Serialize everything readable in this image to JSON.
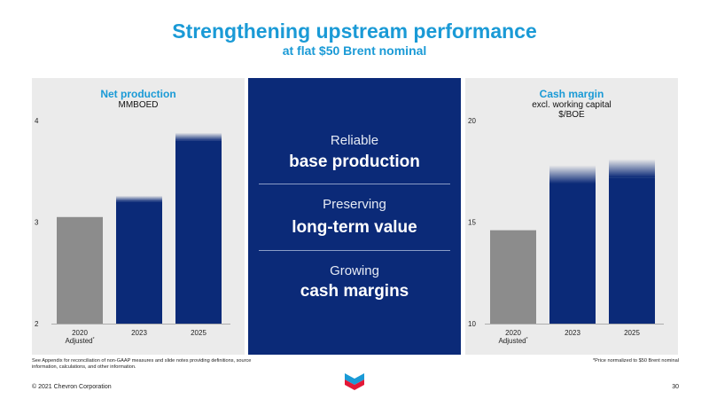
{
  "header": {
    "title": "Strengthening upstream performance",
    "subtitle": "at flat $50 Brent nominal"
  },
  "center": {
    "items": [
      {
        "light": "Reliable",
        "bold": "base production"
      },
      {
        "light": "Preserving",
        "bold": "long-term value"
      },
      {
        "light": "Growing",
        "bold": "cash margins"
      }
    ]
  },
  "chart_data": [
    {
      "type": "bar",
      "title": "Net production",
      "subtitle": [
        "MMBOED"
      ],
      "categories": [
        "2020 Adjusted*",
        "2023",
        "2025"
      ],
      "category_lines": [
        [
          "2020",
          "Adjusted*"
        ],
        [
          "2023"
        ],
        [
          "2025"
        ]
      ],
      "values": [
        3.05,
        3.2,
        3.8
      ],
      "range_top": [
        null,
        3.26,
        3.88
      ],
      "ylim": [
        2,
        4
      ],
      "yticks": [
        "2",
        "3",
        "4"
      ],
      "bar_colors": [
        "#8c8c8c",
        "#0b2a78",
        "#0b2a78"
      ],
      "grid": false,
      "legend": "none"
    },
    {
      "type": "bar",
      "title": "Cash margin",
      "subtitle": [
        "excl. working capital",
        "$/BOE"
      ],
      "categories": [
        "2020 Adjusted*",
        "2023",
        "2025"
      ],
      "category_lines": [
        [
          "2020",
          "Adjusted*"
        ],
        [
          "2023"
        ],
        [
          "2025"
        ]
      ],
      "values": [
        14.6,
        16.9,
        17.2
      ],
      "range_top": [
        null,
        17.8,
        18.1
      ],
      "ylim": [
        10,
        20
      ],
      "yticks": [
        "10",
        "15",
        "20"
      ],
      "bar_colors": [
        "#8c8c8c",
        "#0b2a78",
        "#0b2a78"
      ],
      "grid": false,
      "legend": "none"
    }
  ],
  "footer": {
    "note_left": "See Appendix for reconciliation of non-GAAP measures and slide notes providing definitions, source information, calculations, and other information.",
    "note_right": "*Price normalized to $50 Brent nominal",
    "copyright": "© 2021 Chevron Corporation",
    "page_number": "30",
    "logo_text": "Chevron"
  },
  "colors": {
    "accent": "#1a9ad6",
    "navy": "#0b2a78",
    "gray_bar": "#8c8c8c",
    "panel_bg": "#ebebeb"
  }
}
